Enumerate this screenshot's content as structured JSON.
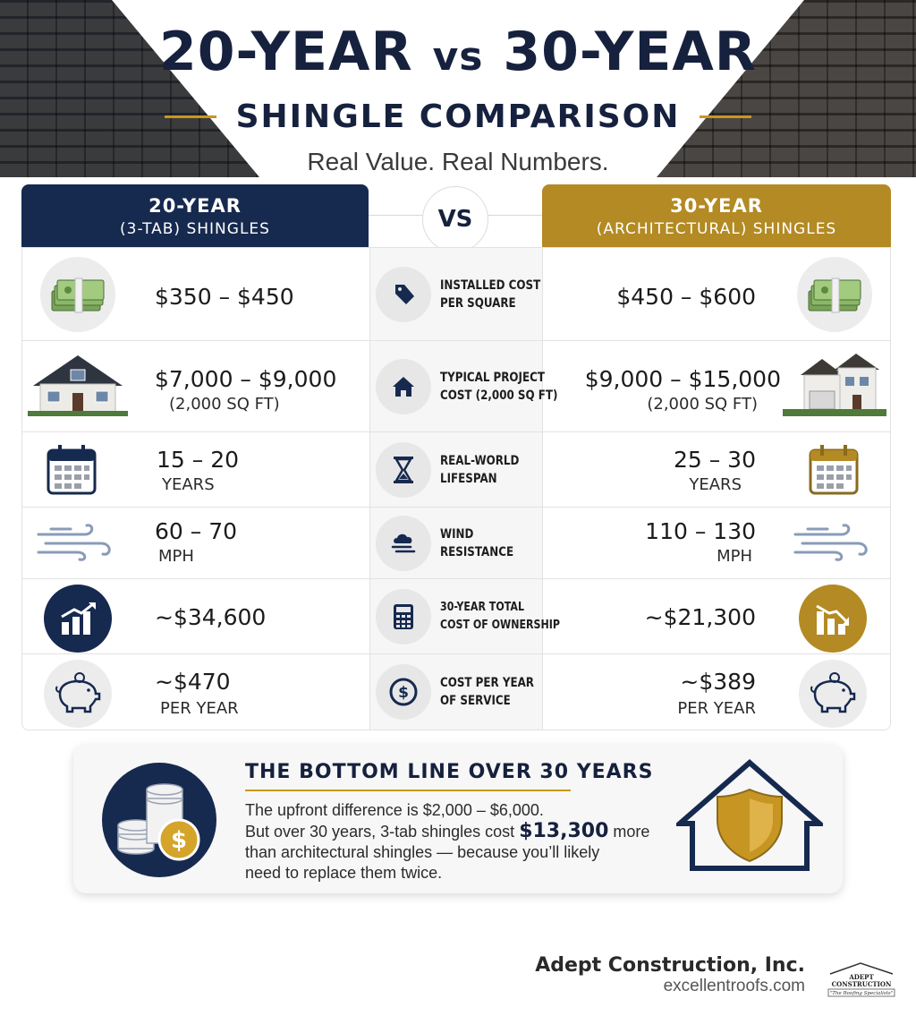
{
  "header": {
    "title_left": "20-YEAR",
    "title_vs": "vs",
    "title_right": "30-YEAR",
    "subtitle": "SHINGLE COMPARISON",
    "tagline": "Real Value. Real Numbers."
  },
  "columns": {
    "left_title": "20-YEAR",
    "left_subtitle": "(3-TAB) SHINGLES",
    "vs": "VS",
    "right_title": "30-YEAR",
    "right_subtitle": "(ARCHITECTURAL) SHINGLES"
  },
  "rows": [
    {
      "label_line1": "INSTALLED COST",
      "label_line2": "PER SQUARE",
      "left_value": "$350 – $450",
      "left_sub": "",
      "right_value": "$450 – $600",
      "right_sub": "",
      "icon_left": "money-stack-icon",
      "icon_mid": "price-tag-icon",
      "icon_right": "money-stack-icon"
    },
    {
      "label_line1": "TYPICAL PROJECT",
      "label_line2": "COST (2,000 SQ FT)",
      "left_value": "$7,000 – $9,000",
      "left_sub": "(2,000 SQ FT)",
      "right_value": "$9,000 – $15,000",
      "right_sub": "(2,000 SQ FT)",
      "icon_left": "house-icon",
      "icon_mid": "home-icon",
      "icon_right": "house-garage-icon"
    },
    {
      "label_line1": "REAL-WORLD",
      "label_line2": "LIFESPAN",
      "left_value": "15 – 20",
      "left_sub": "YEARS",
      "right_value": "25 – 30",
      "right_sub": "YEARS",
      "icon_left": "calendar-icon",
      "icon_mid": "hourglass-icon",
      "icon_right": "calendar-icon"
    },
    {
      "label_line1": "WIND",
      "label_line2": "RESISTANCE",
      "left_value": "60 – 70",
      "left_sub": "MPH",
      "right_value": "110 – 130",
      "right_sub": "MPH",
      "icon_left": "wind-icon",
      "icon_mid": "wind-cloud-icon",
      "icon_right": "wind-icon"
    },
    {
      "label_line1": "30-YEAR TOTAL",
      "label_line2": "COST OF OWNERSHIP",
      "left_value": "~$34,600",
      "left_sub": "",
      "right_value": "~$21,300",
      "right_sub": "",
      "icon_left": "chart-up-icon",
      "icon_mid": "calculator-icon",
      "icon_right": "chart-down-icon"
    },
    {
      "label_line1": "COST PER YEAR",
      "label_line2": "OF SERVICE",
      "left_value": "~$470",
      "left_sub": "PER YEAR",
      "right_value": "~$389",
      "right_sub": "PER YEAR",
      "icon_left": "piggy-bank-icon",
      "icon_mid": "dollar-coin-icon",
      "icon_right": "piggy-bank-icon"
    }
  ],
  "bottom_line": {
    "title": "THE BOTTOM LINE OVER 30 YEARS",
    "text_part1": "The upfront difference is $2,000 – $6,000.",
    "text_part2": "But over 30 years, 3-tab shingles cost",
    "highlight": "$13,300",
    "text_part3": "more",
    "text_part4": "than architectural shingles — because you’ll likely",
    "text_part5": "need to replace them twice.",
    "coin_symbol": "$"
  },
  "footer": {
    "company": "Adept Construction, Inc.",
    "website": "excellentroofs.com",
    "logo_text": "ADEPT CONSTRUCTION",
    "logo_tagline": "The Roofing Specialists"
  },
  "colors": {
    "navy": "#16294f",
    "gold": "#b38a23",
    "accent_rule": "#c9971c"
  }
}
